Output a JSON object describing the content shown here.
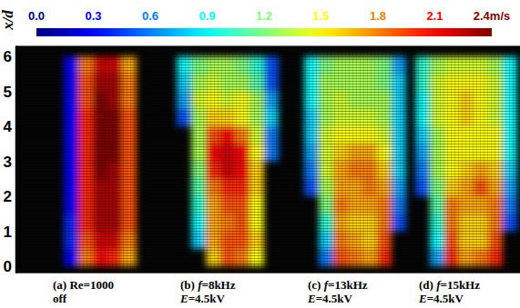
{
  "chart_data": {
    "type": "heatmap",
    "y_label": "x/d",
    "ylim": [
      -0.2,
      6.3
    ],
    "yticks": [
      0,
      1,
      2,
      3,
      4,
      5,
      6
    ],
    "tick_labels": "y",
    "rows": [
      0.25,
      0.75,
      1.25,
      1.75,
      2.25,
      2.75,
      3.25,
      3.75,
      4.25,
      4.75,
      5.25,
      5.75
    ],
    "colorbar": {
      "range": [
        0,
        2.4
      ],
      "ticks": [
        {
          "value": 0,
          "label": "0.0"
        },
        0.3,
        0.6,
        0.9,
        1.2,
        1.5,
        1.8,
        2.1,
        {
          "value": 2.4,
          "label": "2.4m/s"
        }
      ]
    },
    "panels": [
      {
        "caption": [
          "(a) Re=1000",
          "off"
        ],
        "cells": [
          [
            null,
            0.3,
            1.8,
            2.1,
            2.0,
            1.7,
            null
          ],
          [
            null,
            0.4,
            1.9,
            2.2,
            2.2,
            1.8,
            null
          ],
          [
            null,
            0.4,
            2.0,
            2.3,
            2.3,
            1.9,
            null
          ],
          [
            null,
            0.3,
            2.0,
            2.3,
            2.3,
            1.9,
            null
          ],
          [
            null,
            0.3,
            2.0,
            2.3,
            2.3,
            1.9,
            null
          ],
          [
            null,
            0.3,
            2.0,
            2.4,
            2.3,
            1.9,
            null
          ],
          [
            null,
            0.3,
            2.0,
            2.4,
            2.4,
            1.9,
            null
          ],
          [
            null,
            0.3,
            2.0,
            2.4,
            2.4,
            1.9,
            null
          ],
          [
            null,
            0.3,
            2.0,
            2.4,
            2.4,
            1.9,
            null
          ],
          [
            null,
            0.3,
            1.9,
            2.4,
            2.3,
            1.8,
            null
          ],
          [
            null,
            0.3,
            1.9,
            2.3,
            2.3,
            1.8,
            null
          ],
          [
            null,
            0.3,
            1.8,
            2.2,
            2.2,
            1.7,
            null
          ]
        ]
      },
      {
        "caption": [
          "(b) f=8kHz",
          "E=4.5kV"
        ],
        "cells": [
          [
            null,
            null,
            1.6,
            1.9,
            1.8,
            1.5,
            null
          ],
          [
            null,
            0.8,
            1.7,
            1.9,
            1.9,
            1.6,
            null
          ],
          [
            null,
            0.9,
            1.7,
            1.8,
            1.9,
            1.5,
            null
          ],
          [
            null,
            1.0,
            1.7,
            1.9,
            1.9,
            1.5,
            null
          ],
          [
            null,
            1.1,
            1.8,
            2.0,
            2.0,
            1.6,
            null
          ],
          [
            null,
            1.2,
            2.0,
            2.2,
            2.1,
            1.6,
            null
          ],
          [
            null,
            1.3,
            2.1,
            2.2,
            2.1,
            1.5,
            0.6
          ],
          [
            null,
            1.3,
            1.9,
            2.1,
            1.8,
            1.4,
            0.6
          ],
          [
            0.5,
            1.3,
            1.6,
            1.6,
            1.5,
            1.3,
            0.8
          ],
          [
            0.7,
            1.4,
            1.5,
            1.4,
            1.5,
            1.3,
            0.7
          ],
          [
            0.8,
            1.3,
            1.4,
            1.3,
            1.3,
            1.1,
            0.5
          ],
          [
            0.9,
            1.2,
            1.3,
            1.3,
            1.2,
            1.0,
            0.5
          ]
        ]
      },
      {
        "caption": [
          "(c) f=13kHz",
          "E=4.5kV"
        ],
        "cells": [
          [
            null,
            0.6,
            1.9,
            1.8,
            1.7,
            2.0,
            null
          ],
          [
            null,
            0.8,
            1.8,
            1.7,
            1.6,
            1.9,
            null
          ],
          [
            null,
            1.0,
            1.7,
            1.6,
            1.6,
            1.8,
            0.5
          ],
          [
            null,
            1.2,
            1.8,
            1.7,
            1.7,
            1.8,
            0.6
          ],
          [
            0.5,
            1.3,
            1.7,
            1.7,
            1.8,
            1.7,
            0.7
          ],
          [
            0.6,
            1.4,
            1.7,
            1.8,
            1.8,
            1.6,
            0.8
          ],
          [
            0.7,
            1.4,
            1.6,
            1.7,
            1.7,
            1.5,
            0.8
          ],
          [
            0.8,
            1.4,
            1.5,
            1.5,
            1.5,
            1.4,
            0.8
          ],
          [
            0.8,
            1.3,
            1.4,
            1.4,
            1.4,
            1.3,
            0.8
          ],
          [
            0.9,
            1.3,
            1.4,
            1.3,
            1.3,
            1.3,
            0.8
          ],
          [
            0.9,
            1.3,
            1.3,
            1.3,
            1.3,
            1.2,
            0.8
          ],
          [
            0.9,
            1.2,
            1.3,
            1.3,
            1.3,
            1.2,
            0.7
          ]
        ]
      },
      {
        "caption": [
          "(d) f=15kHz",
          "E=4.5kV"
        ],
        "cells": [
          [
            null,
            0.7,
            2.0,
            1.7,
            1.8,
            2.0,
            null
          ],
          [
            null,
            0.9,
            1.9,
            1.6,
            1.6,
            1.9,
            null
          ],
          [
            null,
            1.0,
            1.8,
            1.6,
            1.6,
            1.8,
            0.5
          ],
          [
            null,
            1.1,
            1.8,
            1.7,
            1.7,
            1.8,
            0.6
          ],
          [
            0.5,
            1.2,
            1.6,
            1.7,
            1.9,
            1.7,
            0.7
          ],
          [
            0.6,
            1.3,
            1.5,
            1.6,
            1.7,
            1.6,
            0.8
          ],
          [
            0.7,
            1.3,
            1.5,
            1.5,
            1.5,
            1.5,
            0.9
          ],
          [
            0.8,
            1.3,
            1.5,
            1.5,
            1.5,
            1.5,
            0.9
          ],
          [
            0.9,
            1.4,
            1.5,
            1.6,
            1.5,
            1.4,
            0.9
          ],
          [
            0.9,
            1.4,
            1.5,
            1.6,
            1.5,
            1.4,
            0.9
          ],
          [
            1.0,
            1.4,
            1.5,
            1.5,
            1.5,
            1.4,
            0.9
          ],
          [
            1.0,
            1.3,
            1.4,
            1.4,
            1.4,
            1.3,
            0.9
          ]
        ]
      }
    ]
  }
}
